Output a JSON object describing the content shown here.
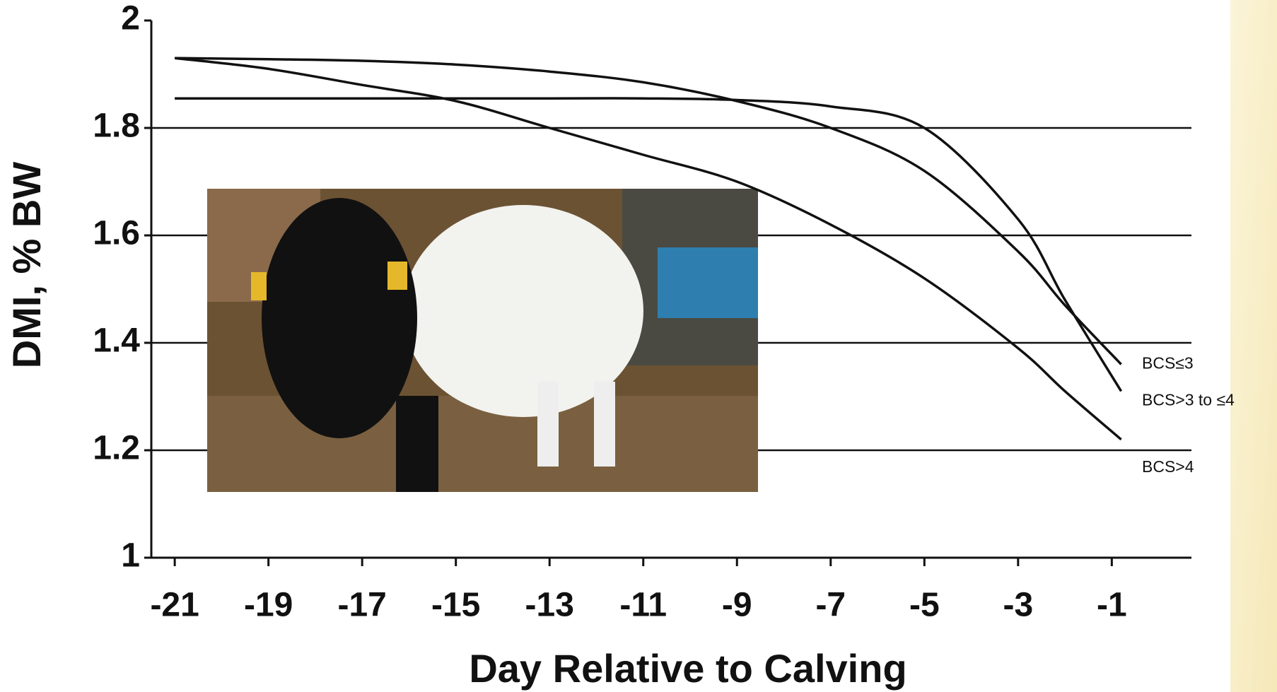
{
  "chart_data": {
    "type": "line",
    "x_label": "Day Relative to Calving",
    "y_label": "DMI, % BW",
    "x": [
      -21,
      -19,
      -17,
      -15,
      -13,
      -11,
      -9,
      -7,
      -5,
      -3,
      -2,
      -0.8
    ],
    "series": [
      {
        "name": "BCS≤3",
        "color": "#111111",
        "values": [
          1.93,
          1.928,
          1.925,
          1.918,
          1.905,
          1.885,
          1.85,
          1.8,
          1.72,
          1.57,
          1.47,
          1.36
        ]
      },
      {
        "name": "BCS>3 to ≤4",
        "color": "#111111",
        "values": [
          1.855,
          1.855,
          1.855,
          1.855,
          1.855,
          1.855,
          1.852,
          1.84,
          1.8,
          1.63,
          1.48,
          1.31
        ]
      },
      {
        "name": "BCS>4",
        "color": "#111111",
        "values": [
          1.93,
          1.91,
          1.88,
          1.85,
          1.8,
          1.75,
          1.7,
          1.62,
          1.52,
          1.39,
          1.31,
          1.22
        ]
      }
    ],
    "xlim": [
      -21.5,
      0.7
    ],
    "xticks": [
      -21,
      -19,
      -17,
      -15,
      -13,
      -11,
      -9,
      -7,
      -5,
      -3,
      -1
    ],
    "ylim": [
      1,
      2
    ],
    "yticks": [
      1,
      1.2,
      1.4,
      1.6,
      1.8,
      2
    ],
    "grid": true
  }
}
